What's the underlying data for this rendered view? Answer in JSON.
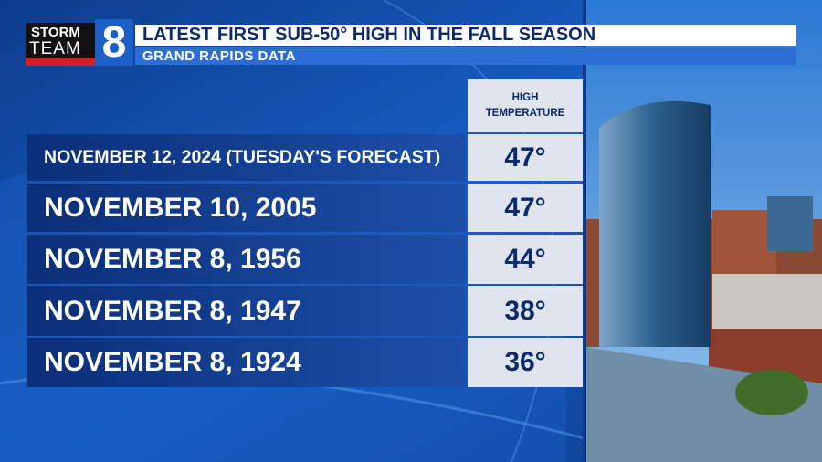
{
  "logo": {
    "line1": "STORM",
    "line2": "TEAM",
    "number": "8"
  },
  "header": {
    "title": "LATEST FIRST SUB-50° HIGH IN THE FALL SEASON",
    "subtitle": "GRAND RAPIDS DATA"
  },
  "table": {
    "column_header": [
      "HIGH",
      "TEMPERATURE"
    ],
    "rows": [
      [
        "NOVEMBER 12, 2024 (TUESDAY'S FORECAST)",
        "47°"
      ],
      [
        "NOVEMBER 10, 2005",
        "47°"
      ],
      [
        "NOVEMBER 8, 1956",
        "44°"
      ],
      [
        "NOVEMBER 8, 1947",
        "38°"
      ],
      [
        "NOVEMBER 8, 1924",
        "36°"
      ]
    ]
  }
}
